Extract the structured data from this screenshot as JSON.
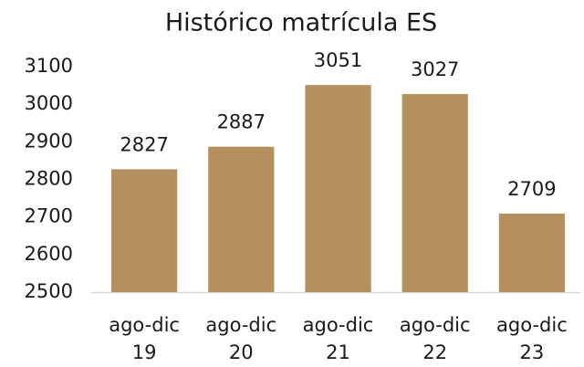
{
  "chart_data": {
    "type": "bar",
    "title": "Histórico matrícula ES",
    "categories": [
      "ago-dic 19",
      "ago-dic 20",
      "ago-dic 21",
      "ago-dic 22",
      "ago-dic 23"
    ],
    "values": [
      2827,
      2887,
      3051,
      3027,
      2709
    ],
    "color": "#b58f5e",
    "ylim": [
      2500,
      3100
    ],
    "yticks": [
      2500,
      2600,
      2700,
      2800,
      2900,
      3000,
      3100
    ],
    "grid": false
  }
}
